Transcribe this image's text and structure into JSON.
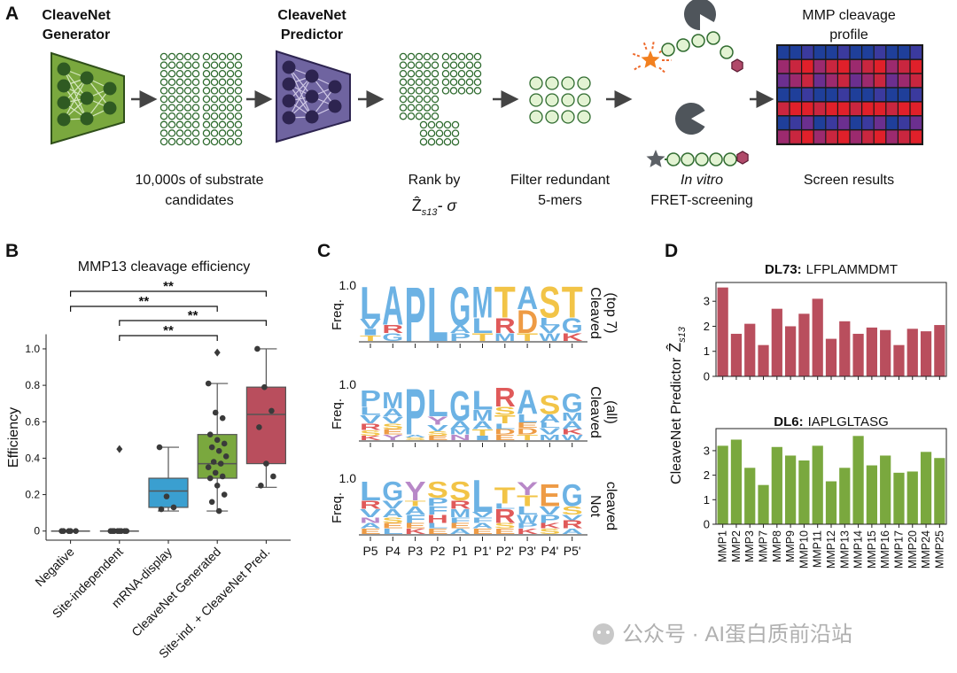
{
  "panel_labels": {
    "a": "A",
    "b": "B",
    "c": "C",
    "d": "D"
  },
  "pipeline": {
    "generator": [
      "CleaveNet",
      "Generator"
    ],
    "predictor": [
      "CleaveNet",
      "Predictor"
    ],
    "candidates": [
      "10,000s of substrate",
      "candidates"
    ],
    "rank": {
      "text": "Rank by",
      "symbol": "Ẑ",
      "subscript": "s13",
      "suffix": "- σ"
    },
    "filter": [
      "Filter redundant",
      "5-mers"
    ],
    "screening": [
      "In vitro",
      "FRET-screening"
    ],
    "profile": [
      "MMP cleavage",
      "profile"
    ],
    "results": "Screen results"
  },
  "watermark": "公众号 · AI蛋白质前沿站",
  "chart_data": [
    {
      "type": "box",
      "title": "MMP13 cleavage efficiency",
      "ylabel": "Efficiency",
      "categories": [
        "Negative",
        "Site-independent",
        "mRNA-display",
        "CleaveNet Generated",
        "Site-ind. + CleaveNet Pred."
      ],
      "boxes": [
        {
          "color": "#7f7f7f",
          "q1": 0,
          "median": 0,
          "q3": 0,
          "whislo": 0,
          "whishi": 0,
          "points": [
            0,
            0,
            0,
            0,
            0
          ],
          "outliers": []
        },
        {
          "color": "#7f7f7f",
          "q1": 0,
          "median": 0,
          "q3": 0,
          "whislo": 0,
          "whishi": 0,
          "points": [
            0,
            0,
            0,
            0,
            0,
            0,
            0,
            0
          ],
          "outliers": [
            0.45
          ]
        },
        {
          "color": "#3a9fd0",
          "q1": 0.13,
          "median": 0.22,
          "q3": 0.29,
          "whislo": 0.11,
          "whishi": 0.46,
          "points": [
            0.46,
            0.19,
            0.13,
            0.12
          ],
          "outliers": []
        },
        {
          "color": "#7aa83e",
          "q1": 0.29,
          "median": 0.37,
          "q3": 0.53,
          "whislo": 0.11,
          "whishi": 0.81,
          "points": [
            0.81,
            0.65,
            0.62,
            0.53,
            0.5,
            0.48,
            0.46,
            0.44,
            0.41,
            0.38,
            0.37,
            0.35,
            0.32,
            0.3,
            0.29,
            0.25,
            0.2,
            0.16,
            0.11
          ],
          "outliers": [
            0.98
          ]
        },
        {
          "color": "#b94e5d",
          "q1": 0.37,
          "median": 0.64,
          "q3": 0.79,
          "whislo": 0.24,
          "whishi": 1.0,
          "points": [
            1.0,
            0.79,
            0.66,
            0.57,
            0.37,
            0.3,
            0.25
          ],
          "outliers": []
        }
      ],
      "significance": [
        {
          "pair": [
            0,
            4
          ],
          "label": "**"
        },
        {
          "pair": [
            0,
            3
          ],
          "label": "**"
        },
        {
          "pair": [
            1,
            4
          ],
          "label": "**"
        },
        {
          "pair": [
            1,
            3
          ],
          "label": "**"
        }
      ],
      "ylim": [
        -0.05,
        1.08
      ],
      "yticks": [
        0,
        0.2,
        0.4,
        0.6,
        0.8,
        {
          "value": 1,
          "label": "1.0"
        }
      ]
    },
    {
      "type": "logo",
      "ylabel": "Freq.",
      "positions": [
        "P5",
        "P4",
        "P3",
        "P2",
        "P1",
        "P1'",
        "P2'",
        "P3'",
        "P4'",
        "P5'"
      ],
      "ylim": [
        0,
        1
      ],
      "yticks": [
        {
          "value": 1,
          "label": "1.0"
        }
      ],
      "colors": {
        "A": "#6cb2e4",
        "V": "#6cb2e4",
        "L": "#6cb2e4",
        "I": "#6cb2e4",
        "M": "#6cb2e4",
        "F": "#6cb2e4",
        "W": "#6cb2e4",
        "P": "#6cb2e4",
        "G": "#6cb2e4",
        "C": "#6cb2e4",
        "S": "#f2c447",
        "T": "#f2c447",
        "R": "#e05a5a",
        "K": "#e05a5a",
        "H": "#e05a5a",
        "D": "#ee9b45",
        "E": "#ee9b45",
        "N": "#b888c8",
        "Q": "#b888c8",
        "Y": "#b888c8"
      },
      "panels": [
        {
          "label": [
            "Cleaved",
            "(top 7)"
          ],
          "stacks": [
            [
              {
                "letter": "T",
                "value": 0.1
              },
              {
                "letter": "I",
                "value": 0.12
              },
              {
                "letter": "V",
                "value": 0.18
              },
              {
                "letter": "L",
                "value": 0.6
              }
            ],
            [
              {
                "letter": "G",
                "value": 0.14
              },
              {
                "letter": "R",
                "value": 0.15
              },
              {
                "letter": "A",
                "value": 0.71
              }
            ],
            [
              {
                "letter": "P",
                "value": 1.0
              }
            ],
            [
              {
                "letter": "L",
                "value": 1.0
              }
            ],
            [
              {
                "letter": "P",
                "value": 0.14
              },
              {
                "letter": "A",
                "value": 0.14
              },
              {
                "letter": "G",
                "value": 0.72
              }
            ],
            [
              {
                "letter": "T",
                "value": 0.14
              },
              {
                "letter": "L",
                "value": 0.28
              },
              {
                "letter": "M",
                "value": 0.58
              }
            ],
            [
              {
                "letter": "M",
                "value": 0.14
              },
              {
                "letter": "R",
                "value": 0.28
              },
              {
                "letter": "T",
                "value": 0.58
              }
            ],
            [
              {
                "letter": "T",
                "value": 0.14
              },
              {
                "letter": "D",
                "value": 0.43
              },
              {
                "letter": "A",
                "value": 0.43
              }
            ],
            [
              {
                "letter": "W",
                "value": 0.14
              },
              {
                "letter": "V",
                "value": 0.14
              },
              {
                "letter": "L",
                "value": 0.14
              },
              {
                "letter": "S",
                "value": 0.58
              }
            ],
            [
              {
                "letter": "K",
                "value": 0.14
              },
              {
                "letter": "G",
                "value": 0.28
              },
              {
                "letter": "T",
                "value": 0.58
              }
            ]
          ]
        },
        {
          "label": [
            "Cleaved",
            "(all)"
          ],
          "stacks": [
            [
              {
                "letter": "K",
                "value": 0.08
              },
              {
                "letter": "S",
                "value": 0.1
              },
              {
                "letter": "R",
                "value": 0.12
              },
              {
                "letter": "V",
                "value": 0.15
              },
              {
                "letter": "L",
                "value": 0.15
              },
              {
                "letter": "P",
                "value": 0.3
              }
            ],
            [
              {
                "letter": "Y",
                "value": 0.1
              },
              {
                "letter": "E",
                "value": 0.1
              },
              {
                "letter": "S",
                "value": 0.1
              },
              {
                "letter": "V",
                "value": 0.12
              },
              {
                "letter": "A",
                "value": 0.15
              },
              {
                "letter": "M",
                "value": 0.3
              }
            ],
            [
              {
                "letter": "S",
                "value": 0.05
              },
              {
                "letter": "A",
                "value": 0.05
              },
              {
                "letter": "P",
                "value": 0.85
              }
            ],
            [
              {
                "letter": "E",
                "value": 0.08
              },
              {
                "letter": "S",
                "value": 0.08
              },
              {
                "letter": "V",
                "value": 0.12
              },
              {
                "letter": "Y",
                "value": 0.15
              },
              {
                "letter": "L",
                "value": 0.5
              }
            ],
            [
              {
                "letter": "N",
                "value": 0.1
              },
              {
                "letter": "M",
                "value": 0.1
              },
              {
                "letter": "A",
                "value": 0.15
              },
              {
                "letter": "G",
                "value": 0.55
              }
            ],
            [
              {
                "letter": "I",
                "value": 0.08
              },
              {
                "letter": "T",
                "value": 0.12
              },
              {
                "letter": "A",
                "value": 0.15
              },
              {
                "letter": "M",
                "value": 0.2
              },
              {
                "letter": "L",
                "value": 0.35
              }
            ],
            [
              {
                "letter": "E",
                "value": 0.1
              },
              {
                "letter": "D",
                "value": 0.1
              },
              {
                "letter": "L",
                "value": 0.1
              },
              {
                "letter": "T",
                "value": 0.15
              },
              {
                "letter": "S",
                "value": 0.15
              },
              {
                "letter": "R",
                "value": 0.35
              }
            ],
            [
              {
                "letter": "T",
                "value": 0.1
              },
              {
                "letter": "D",
                "value": 0.12
              },
              {
                "letter": "E",
                "value": 0.1
              },
              {
                "letter": "L",
                "value": 0.15
              },
              {
                "letter": "A",
                "value": 0.45
              }
            ],
            [
              {
                "letter": "M",
                "value": 0.1
              },
              {
                "letter": "V",
                "value": 0.12
              },
              {
                "letter": "L",
                "value": 0.1
              },
              {
                "letter": "A",
                "value": 0.15
              },
              {
                "letter": "S",
                "value": 0.35
              }
            ],
            [
              {
                "letter": "W",
                "value": 0.1
              },
              {
                "letter": "K",
                "value": 0.1
              },
              {
                "letter": "A",
                "value": 0.15
              },
              {
                "letter": "M",
                "value": 0.15
              },
              {
                "letter": "G",
                "value": 0.35
              }
            ]
          ]
        },
        {
          "label": [
            "Not",
            "cleaved"
          ],
          "stacks": [
            [
              {
                "letter": "E",
                "value": 0.1
              },
              {
                "letter": "A",
                "value": 0.1
              },
              {
                "letter": "N",
                "value": 0.1
              },
              {
                "letter": "V",
                "value": 0.15
              },
              {
                "letter": "R",
                "value": 0.15
              },
              {
                "letter": "L",
                "value": 0.35
              }
            ],
            [
              {
                "letter": "L",
                "value": 0.1
              },
              {
                "letter": "E",
                "value": 0.1
              },
              {
                "letter": "S",
                "value": 0.1
              },
              {
                "letter": "A",
                "value": 0.15
              },
              {
                "letter": "V",
                "value": 0.15
              },
              {
                "letter": "G",
                "value": 0.35
              }
            ],
            [
              {
                "letter": "K",
                "value": 0.1
              },
              {
                "letter": "E",
                "value": 0.1
              },
              {
                "letter": "F",
                "value": 0.15
              },
              {
                "letter": "A",
                "value": 0.15
              },
              {
                "letter": "T",
                "value": 0.1
              },
              {
                "letter": "Y",
                "value": 0.35
              }
            ],
            [
              {
                "letter": "E",
                "value": 0.1
              },
              {
                "letter": "L",
                "value": 0.1
              },
              {
                "letter": "H",
                "value": 0.15
              },
              {
                "letter": "F",
                "value": 0.15
              },
              {
                "letter": "P",
                "value": 0.15
              },
              {
                "letter": "S",
                "value": 0.3
              }
            ],
            [
              {
                "letter": "A",
                "value": 0.1
              },
              {
                "letter": "E",
                "value": 0.1
              },
              {
                "letter": "F",
                "value": 0.1
              },
              {
                "letter": "M",
                "value": 0.15
              },
              {
                "letter": "R",
                "value": 0.15
              },
              {
                "letter": "S",
                "value": 0.35
              }
            ],
            [
              {
                "letter": "E",
                "value": 0.1
              },
              {
                "letter": "A",
                "value": 0.1
              },
              {
                "letter": "F",
                "value": 0.1
              },
              {
                "letter": "V",
                "value": 0.1
              },
              {
                "letter": "L",
                "value": 0.6
              }
            ],
            [
              {
                "letter": "E",
                "value": 0.1
              },
              {
                "letter": "S",
                "value": 0.1
              },
              {
                "letter": "R",
                "value": 0.25
              },
              {
                "letter": "L",
                "value": 0.1
              },
              {
                "letter": "T",
                "value": 0.3
              }
            ],
            [
              {
                "letter": "K",
                "value": 0.1
              },
              {
                "letter": "P",
                "value": 0.1
              },
              {
                "letter": "W",
                "value": 0.15
              },
              {
                "letter": "L",
                "value": 0.15
              },
              {
                "letter": "T",
                "value": 0.2
              },
              {
                "letter": "Y",
                "value": 0.25
              }
            ],
            [
              {
                "letter": "S",
                "value": 0.1
              },
              {
                "letter": "K",
                "value": 0.1
              },
              {
                "letter": "P",
                "value": 0.15
              },
              {
                "letter": "V",
                "value": 0.15
              },
              {
                "letter": "E",
                "value": 0.4
              }
            ],
            [
              {
                "letter": "A",
                "value": 0.1
              },
              {
                "letter": "R",
                "value": 0.15
              },
              {
                "letter": "V",
                "value": 0.1
              },
              {
                "letter": "S",
                "value": 0.15
              },
              {
                "letter": "G",
                "value": 0.4
              }
            ]
          ]
        }
      ]
    },
    {
      "type": "bar",
      "title": {
        "name": "DL73:",
        "sequence": "LFPLAMMDMT"
      },
      "ylabel": "CleaveNet Predictor",
      "ylabel_symbol": "Ẑ",
      "ylabel_subscript": "s13",
      "categories": [
        null,
        null,
        null,
        null,
        null,
        null,
        null,
        null,
        null,
        null,
        null,
        null,
        null,
        null,
        null,
        null,
        null
      ],
      "values": [
        3.55,
        1.7,
        2.1,
        1.25,
        2.7,
        2.0,
        2.5,
        3.1,
        1.5,
        2.2,
        1.7,
        1.95,
        1.85,
        1.25,
        1.9,
        1.8,
        2.05
      ],
      "color": "#b94e5d",
      "ylim": [
        0,
        3.75
      ],
      "yticks": [
        0,
        1,
        2,
        3
      ]
    },
    {
      "type": "bar",
      "title": {
        "name": "DL6:",
        "sequence": "IAPLGLTASG"
      },
      "categories": [
        "MMP1",
        "MMP2",
        "MMP3",
        "MMP7",
        "MMP8",
        "MMP9",
        "MMP10",
        "MMP11",
        "MMP12",
        "MMP13",
        "MMP14",
        "MMP15",
        "MMP16",
        "MMP17",
        "MMP20",
        "MMP24",
        "MMP25"
      ],
      "values": [
        3.2,
        3.45,
        2.3,
        1.6,
        3.15,
        2.8,
        2.6,
        3.2,
        1.75,
        2.3,
        3.6,
        2.4,
        2.8,
        2.1,
        2.15,
        2.95,
        2.7
      ],
      "color": "#7aa83e",
      "ylim": [
        0,
        3.9
      ],
      "yticks": [
        0,
        1,
        2,
        3
      ]
    }
  ]
}
